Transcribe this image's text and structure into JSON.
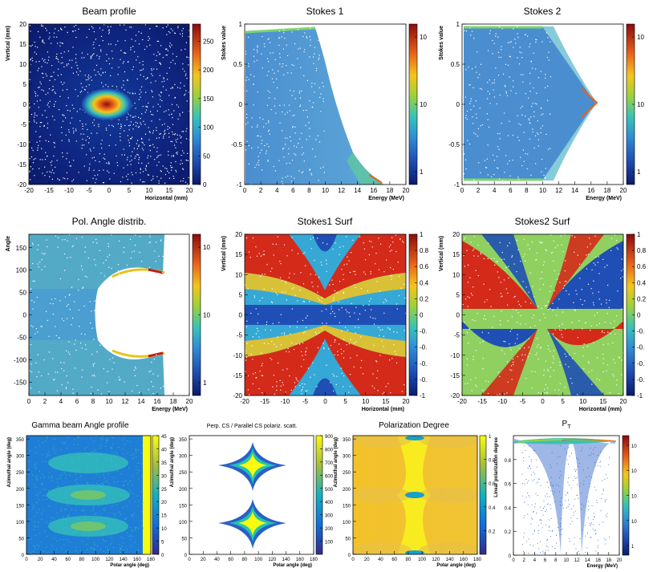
{
  "chart_data": [
    {
      "type": "heatmap",
      "title": "Beam profile",
      "xlabel": "Horizontal (mm)",
      "ylabel": "Vertical (mm)",
      "xlim": [
        -20,
        20
      ],
      "ylim": [
        -20,
        20
      ],
      "xticks": [
        "-20",
        "-15",
        "-10",
        "-5",
        "0",
        "5",
        "10",
        "15",
        "20"
      ],
      "yticks": [
        "-20",
        "-15",
        "-10",
        "-5",
        "0",
        "5",
        "10",
        "15",
        "20"
      ],
      "colorbar_ticks": [
        "0",
        "50",
        "100",
        "150",
        "200",
        "250"
      ],
      "colorbar_range": [
        0,
        280
      ],
      "peak_value": 280
    },
    {
      "type": "heatmap",
      "title": "Stokes 1",
      "xlabel": "Energy (MeV)",
      "ylabel": "Stokes value",
      "xlim": [
        0,
        20
      ],
      "ylim": [
        -1,
        1
      ],
      "xticks": [
        "0",
        "2",
        "4",
        "6",
        "8",
        "10",
        "12",
        "14",
        "16",
        "18",
        "20"
      ],
      "yticks": [
        "-1",
        "-0.5",
        "0",
        "0.5",
        "1"
      ],
      "colorbar_ticks": [
        "1",
        "10",
        "10"
      ],
      "log_scale": true
    },
    {
      "type": "heatmap",
      "title": "Stokes 2",
      "xlabel": "Energy (MeV)",
      "ylabel": "Stokes value",
      "xlim": [
        0,
        20
      ],
      "ylim": [
        -1,
        1
      ],
      "xticks": [
        "0",
        "2",
        "4",
        "6",
        "8",
        "10",
        "12",
        "14",
        "16",
        "18",
        "20"
      ],
      "yticks": [
        "-1",
        "-0.5",
        "0",
        "0.5",
        "1"
      ],
      "colorbar_ticks": [
        "1",
        "10",
        "10"
      ],
      "log_scale": true
    },
    {
      "type": "heatmap",
      "title": "Pol. Angle distrib.",
      "xlabel": "Energy (MeV)",
      "ylabel": "Angle",
      "xlim": [
        0,
        20
      ],
      "ylim": [
        -180,
        180
      ],
      "xticks": [
        "0",
        "2",
        "4",
        "6",
        "8",
        "10",
        "12",
        "14",
        "16",
        "18",
        "20"
      ],
      "yticks": [
        "-150",
        "-100",
        "-50",
        "0",
        "50",
        "100",
        "150"
      ],
      "colorbar_ticks": [
        "1",
        "10",
        "10"
      ],
      "log_scale": true
    },
    {
      "type": "heatmap",
      "title": "Stokes1 Surf",
      "xlabel": "Horizontal (mm)",
      "ylabel": "Vertical (mm)",
      "xlim": [
        -20,
        20
      ],
      "ylim": [
        -20,
        20
      ],
      "xticks": [
        "-20",
        "-15",
        "-10",
        "-5",
        "0",
        "5",
        "10",
        "15",
        "20"
      ],
      "yticks": [
        "-20",
        "-15",
        "-10",
        "-5",
        "0",
        "5",
        "10",
        "15",
        "20"
      ],
      "colorbar_ticks": [
        "1",
        "0.8",
        "0.6",
        "0.4",
        "0.2",
        "0",
        "-0.",
        "-0.",
        "-0.",
        "-0.",
        "-1"
      ],
      "colorbar_range": [
        -1,
        1
      ]
    },
    {
      "type": "heatmap",
      "title": "Stokes2 Surf",
      "xlabel": "Horizontal (mm)",
      "ylabel": "Vertical (mm)",
      "xlim": [
        -20,
        20
      ],
      "ylim": [
        -20,
        20
      ],
      "xticks": [
        "-20",
        "-15",
        "-10",
        "-5",
        "0",
        "5",
        "10",
        "15",
        "20"
      ],
      "yticks": [
        "-20",
        "-15",
        "-10",
        "-5",
        "0",
        "5",
        "10",
        "15",
        "20"
      ],
      "colorbar_ticks": [
        "1",
        "0.8",
        "0.6",
        "0.4",
        "0.2",
        "0",
        "-0.",
        "-0.",
        "-0.",
        "-0.",
        "-1"
      ],
      "colorbar_range": [
        -1,
        1
      ]
    },
    {
      "type": "heatmap",
      "title": "Gamma beam Angle profile",
      "xlabel": "Polar angle (deg)",
      "ylabel": "Azimuthal angle (deg)",
      "xlim": [
        0,
        180
      ],
      "ylim": [
        0,
        360
      ],
      "xticks": [
        "0",
        "20",
        "40",
        "60",
        "80",
        "100",
        "120",
        "140",
        "160",
        "180"
      ],
      "yticks": [
        "0",
        "50",
        "100",
        "150",
        "200",
        "250",
        "300",
        "350"
      ],
      "colorbar_ticks": [
        "0",
        "5",
        "10",
        "15",
        "20",
        "25",
        "30",
        "35",
        "40",
        "45"
      ],
      "colorbar_range": [
        0,
        45
      ]
    },
    {
      "type": "heatmap",
      "title": "Perp. CS / Parallel CS polariz. scatt.",
      "xlabel": "Polar angle (deg)",
      "ylabel": "Azimuthal angle (deg)",
      "xlim": [
        0,
        180
      ],
      "ylim": [
        0,
        360
      ],
      "xticks": [
        "0",
        "20",
        "40",
        "60",
        "80",
        "100",
        "120",
        "140",
        "160",
        "180"
      ],
      "yticks": [
        "0",
        "50",
        "100",
        "150",
        "200",
        "250",
        "300",
        "350"
      ],
      "colorbar_ticks": [
        "100",
        "200",
        "300",
        "400",
        "500",
        "600",
        "700",
        "800",
        "900"
      ],
      "colorbar_range": [
        0,
        900
      ]
    },
    {
      "type": "heatmap",
      "title": "Polarization Degree",
      "xlabel": "Polar angle (deg)",
      "ylabel": "Azimuthal angle (deg)",
      "xlim": [
        0,
        180
      ],
      "ylim": [
        0,
        360
      ],
      "xticks": [
        "0",
        "20",
        "40",
        "60",
        "80",
        "100",
        "120",
        "140",
        "160",
        "180"
      ],
      "yticks": [
        "0",
        "50",
        "100",
        "150",
        "200",
        "250",
        "300",
        "350"
      ],
      "colorbar_ticks": [
        "0.2",
        "0.4",
        "0.6",
        "0.8",
        "1"
      ],
      "colorbar_range": [
        0,
        1
      ]
    },
    {
      "type": "heatmap",
      "title": "P",
      "title_sub": "T",
      "xlabel": "Energy (MeV)",
      "ylabel": "Linear polarization degree",
      "xlim": [
        0,
        20
      ],
      "ylim": [
        0,
        1
      ],
      "xticks": [
        "0",
        "2",
        "4",
        "6",
        "8",
        "10",
        "12",
        "14",
        "16",
        "18",
        "20"
      ],
      "yticks": [
        "0",
        "0.2",
        "0.4",
        "0.6",
        "0.8"
      ],
      "colorbar_ticks": [
        "1",
        "10",
        "10",
        "10",
        "10"
      ],
      "log_scale": true
    }
  ]
}
